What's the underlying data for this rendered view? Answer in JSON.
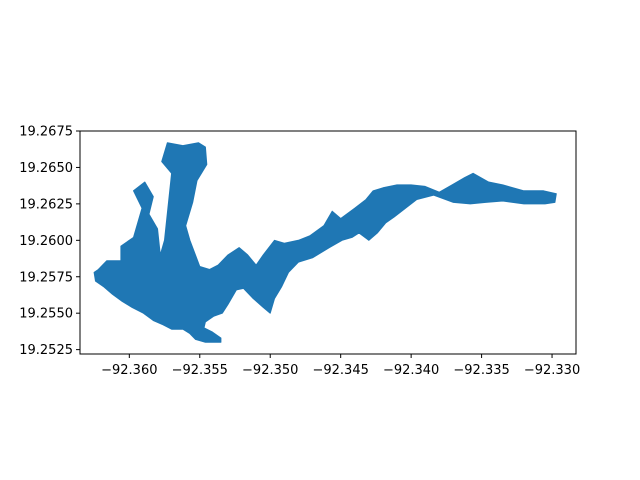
{
  "chart_data": {
    "type": "area",
    "title": "",
    "xlabel": "",
    "ylabel": "",
    "xlim": [
      -92.3635,
      -92.3283
    ],
    "ylim": [
      19.2522,
      19.2675
    ],
    "grid": false,
    "colors": {
      "fill": "#1f77b4",
      "axes": "#000000",
      "background": "#ffffff"
    },
    "x_ticks": [
      {
        "value": -92.36,
        "label": "−92.360"
      },
      {
        "value": -92.355,
        "label": "−92.355"
      },
      {
        "value": -92.35,
        "label": "−92.350"
      },
      {
        "value": -92.345,
        "label": "−92.345"
      },
      {
        "value": -92.34,
        "label": "−92.340"
      },
      {
        "value": -92.335,
        "label": "−92.335"
      },
      {
        "value": -92.33,
        "label": "−92.330"
      }
    ],
    "y_ticks": [
      {
        "value": 19.2525,
        "label": "19.2525"
      },
      {
        "value": 19.255,
        "label": "19.2550"
      },
      {
        "value": 19.2575,
        "label": "19.2575"
      },
      {
        "value": 19.26,
        "label": "19.2600"
      },
      {
        "value": 19.2625,
        "label": "19.2625"
      },
      {
        "value": 19.265,
        "label": "19.2650"
      },
      {
        "value": 19.2675,
        "label": "19.2675"
      }
    ],
    "series": [
      {
        "kind": "polygon",
        "color": "#1f77b4",
        "outline": [
          [
            -92.3622,
            19.258
          ],
          [
            -92.3616,
            19.2586
          ],
          [
            -92.3606,
            19.2586
          ],
          [
            -92.3606,
            19.2596
          ],
          [
            -92.3597,
            19.2602
          ],
          [
            -92.3591,
            19.2622
          ],
          [
            -92.3597,
            19.2634
          ],
          [
            -92.3589,
            19.264
          ],
          [
            -92.3583,
            19.263
          ],
          [
            -92.3586,
            19.2618
          ],
          [
            -92.358,
            19.2608
          ],
          [
            -92.3578,
            19.259
          ],
          [
            -92.3575,
            19.26
          ],
          [
            -92.357,
            19.2646
          ],
          [
            -92.3577,
            19.2654
          ],
          [
            -92.3573,
            19.2667
          ],
          [
            -92.3562,
            19.2665
          ],
          [
            -92.3551,
            19.2667
          ],
          [
            -92.3546,
            19.2664
          ],
          [
            -92.3545,
            19.2652
          ],
          [
            -92.3552,
            19.2641
          ],
          [
            -92.3555,
            19.2626
          ],
          [
            -92.356,
            19.261
          ],
          [
            -92.3557,
            19.26
          ],
          [
            -92.355,
            19.2582
          ],
          [
            -92.3543,
            19.258
          ],
          [
            -92.3537,
            19.2583
          ],
          [
            -92.353,
            19.259
          ],
          [
            -92.3522,
            19.2595
          ],
          [
            -92.3516,
            19.259
          ],
          [
            -92.351,
            19.2583
          ],
          [
            -92.3505,
            19.259
          ],
          [
            -92.3497,
            19.26
          ],
          [
            -92.349,
            19.2598
          ],
          [
            -92.348,
            19.26
          ],
          [
            -92.3472,
            19.2603
          ],
          [
            -92.3462,
            19.261
          ],
          [
            -92.3456,
            19.262
          ],
          [
            -92.345,
            19.2615
          ],
          [
            -92.344,
            19.2622
          ],
          [
            -92.3432,
            19.2628
          ],
          [
            -92.3427,
            19.2634
          ],
          [
            -92.342,
            19.2636
          ],
          [
            -92.341,
            19.2638
          ],
          [
            -92.34,
            19.2638
          ],
          [
            -92.339,
            19.2637
          ],
          [
            -92.338,
            19.2633
          ],
          [
            -92.3371,
            19.2638
          ],
          [
            -92.3362,
            19.2643
          ],
          [
            -92.3356,
            19.2646
          ],
          [
            -92.3345,
            19.264
          ],
          [
            -92.3335,
            19.2638
          ],
          [
            -92.332,
            19.2634
          ],
          [
            -92.3306,
            19.2634
          ],
          [
            -92.3297,
            19.2632
          ],
          [
            -92.3298,
            19.2626
          ],
          [
            -92.3305,
            19.2625
          ],
          [
            -92.332,
            19.2625
          ],
          [
            -92.3335,
            19.2627
          ],
          [
            -92.3347,
            19.2626
          ],
          [
            -92.3358,
            19.2625
          ],
          [
            -92.337,
            19.2626
          ],
          [
            -92.3384,
            19.2631
          ],
          [
            -92.3396,
            19.2628
          ],
          [
            -92.3404,
            19.2622
          ],
          [
            -92.3412,
            19.2616
          ],
          [
            -92.3418,
            19.2612
          ],
          [
            -92.3424,
            19.2605
          ],
          [
            -92.343,
            19.26
          ],
          [
            -92.3437,
            19.2605
          ],
          [
            -92.3442,
            19.2602
          ],
          [
            -92.3449,
            19.26
          ],
          [
            -92.3458,
            19.2595
          ],
          [
            -92.347,
            19.2588
          ],
          [
            -92.348,
            19.2585
          ],
          [
            -92.3487,
            19.2578
          ],
          [
            -92.3492,
            19.2568
          ],
          [
            -92.3497,
            19.256
          ],
          [
            -92.35,
            19.255
          ],
          [
            -92.3505,
            19.2554
          ],
          [
            -92.3512,
            19.256
          ],
          [
            -92.3519,
            19.2567
          ],
          [
            -92.3524,
            19.2566
          ],
          [
            -92.353,
            19.2556
          ],
          [
            -92.3534,
            19.255
          ],
          [
            -92.354,
            19.2548
          ],
          [
            -92.3546,
            19.2544
          ],
          [
            -92.3547,
            19.254
          ],
          [
            -92.3541,
            19.2537
          ],
          [
            -92.3535,
            19.2533
          ],
          [
            -92.3535,
            19.253
          ],
          [
            -92.354,
            19.253
          ],
          [
            -92.3546,
            19.253
          ],
          [
            -92.3553,
            19.2532
          ],
          [
            -92.3557,
            19.2536
          ],
          [
            -92.3562,
            19.2539
          ],
          [
            -92.357,
            19.2539
          ],
          [
            -92.3576,
            19.2542
          ],
          [
            -92.3583,
            19.2545
          ],
          [
            -92.359,
            19.255
          ],
          [
            -92.3598,
            19.2554
          ],
          [
            -92.3605,
            19.2558
          ],
          [
            -92.3612,
            19.2563
          ],
          [
            -92.3618,
            19.2568
          ],
          [
            -92.3624,
            19.2572
          ],
          [
            -92.3625,
            19.2578
          ]
        ]
      }
    ]
  }
}
